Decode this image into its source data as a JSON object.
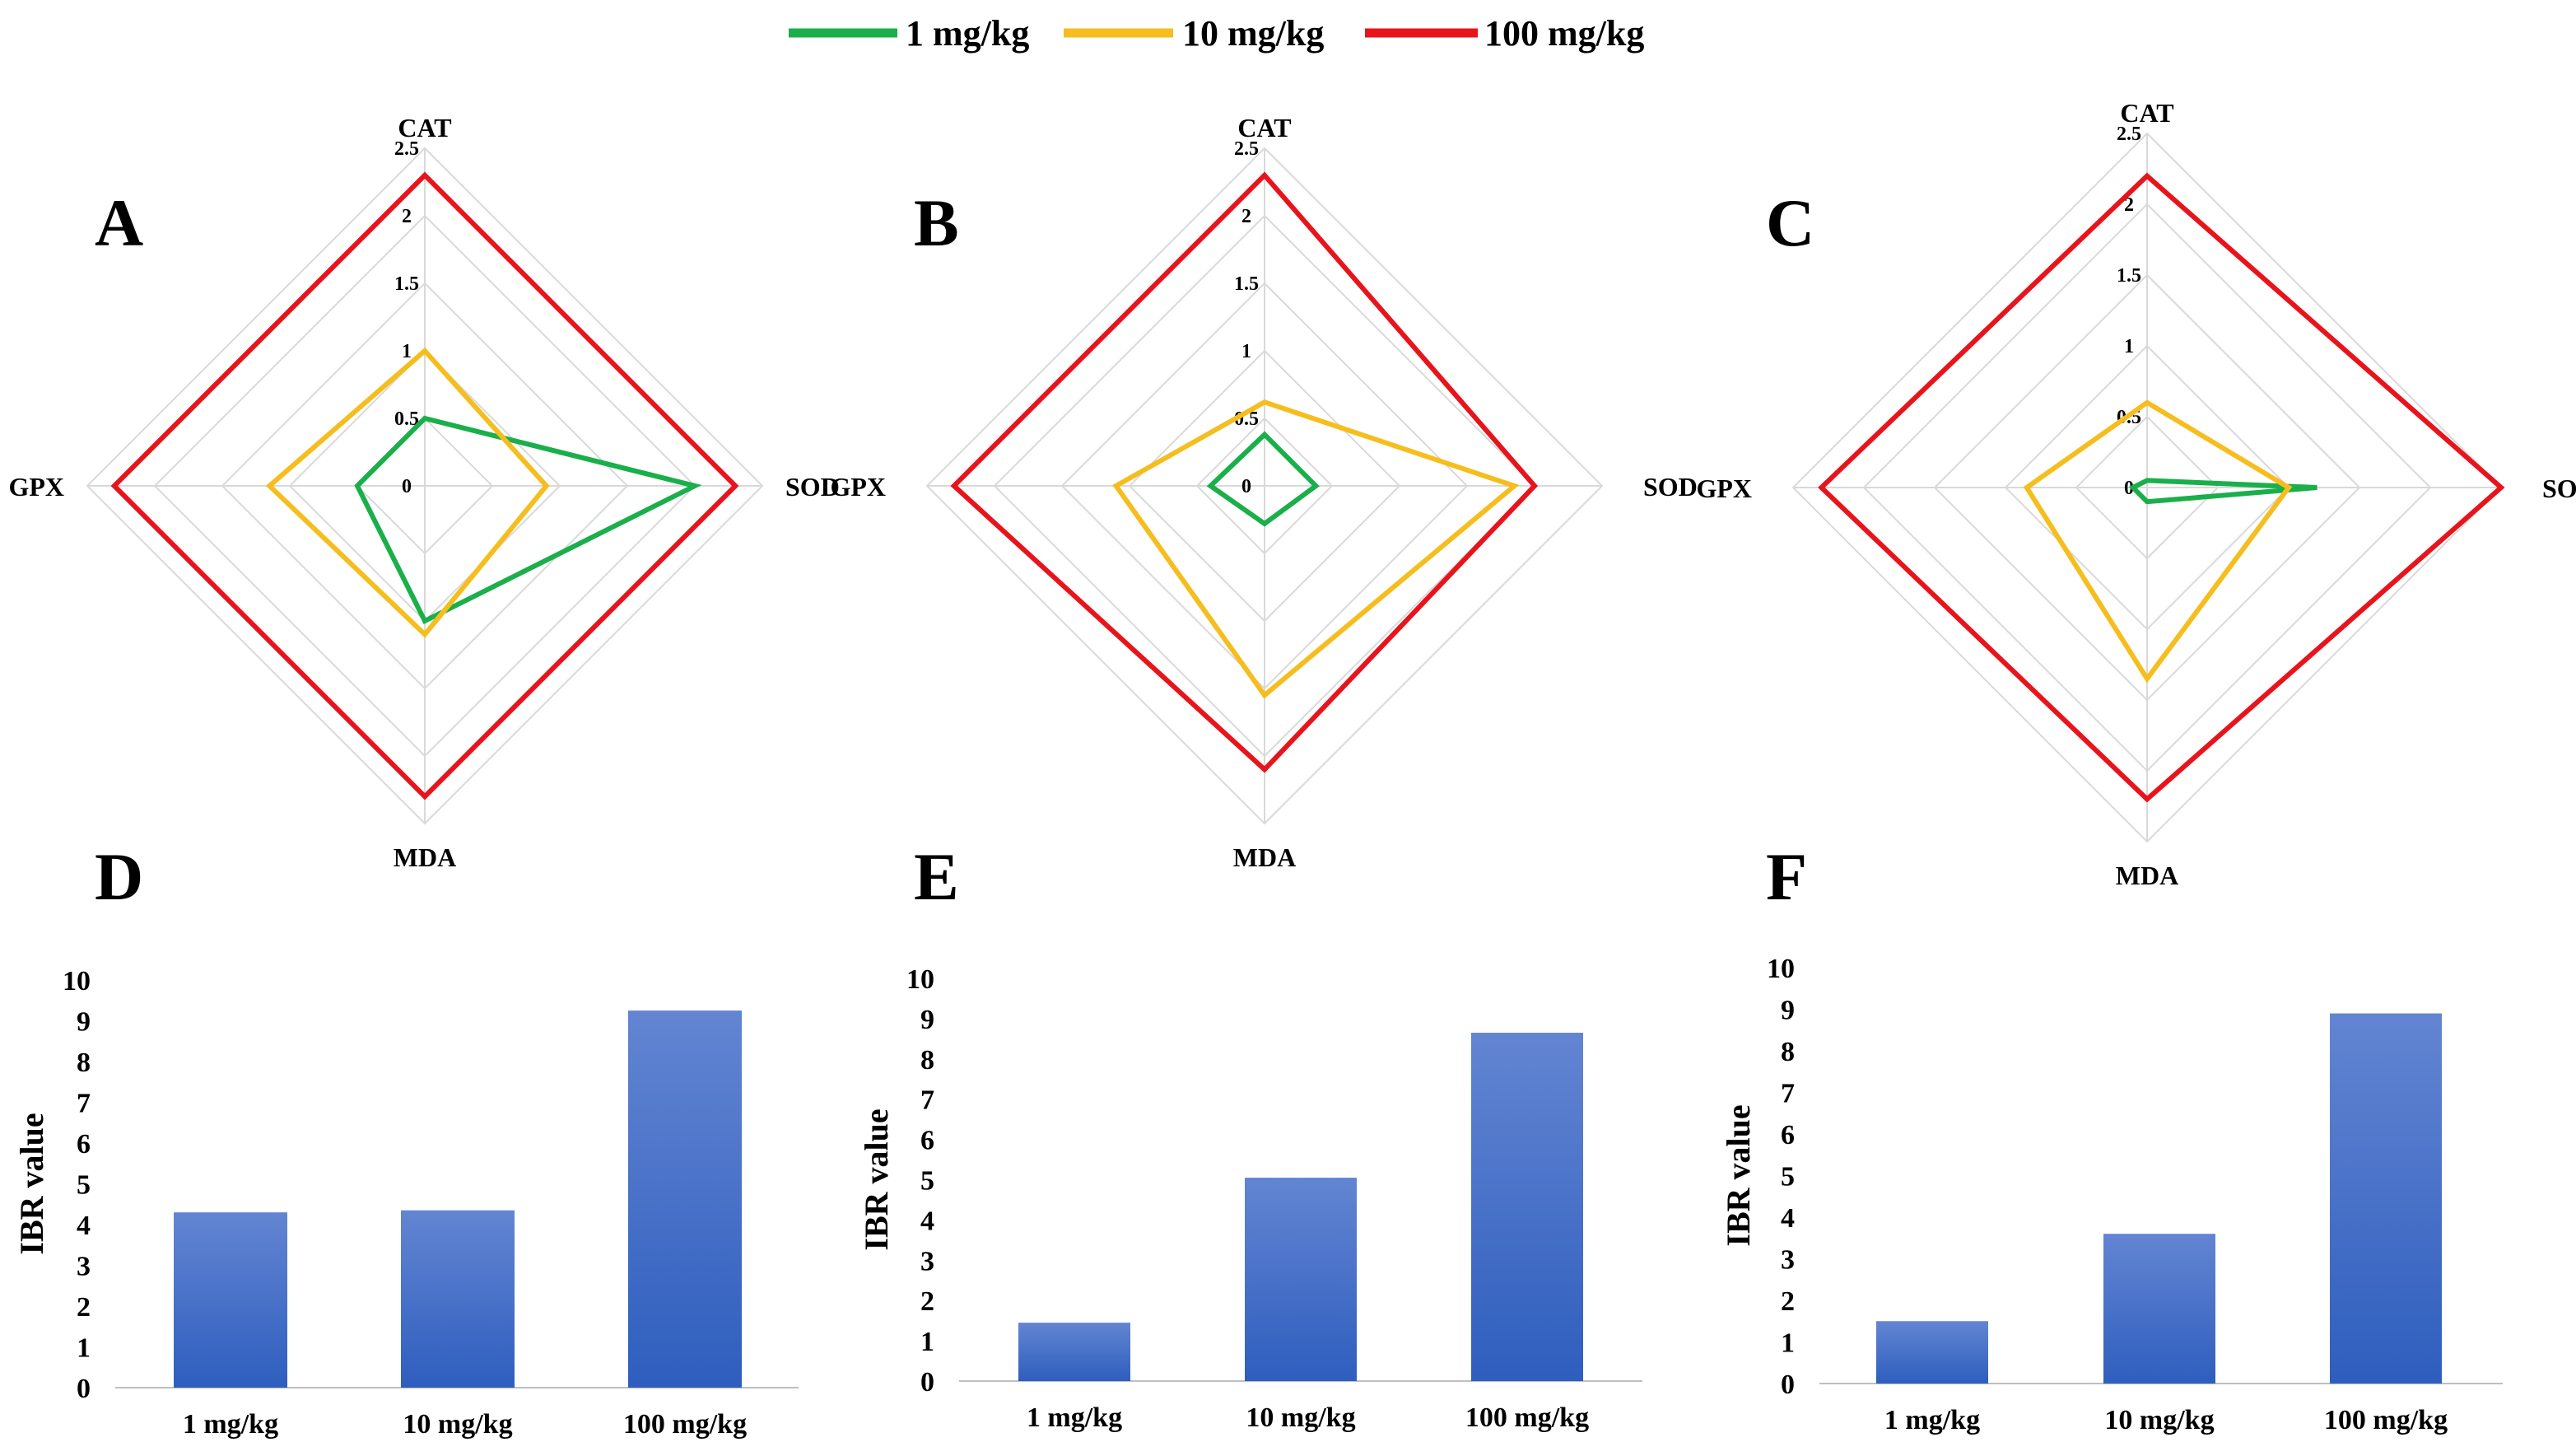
{
  "legend": [
    {
      "label": "1 mg/kg",
      "color": "#1AAF4B"
    },
    {
      "label": "10 mg/kg",
      "color": "#F5BE1E"
    },
    {
      "label": "100 mg/kg",
      "color": "#E8141C"
    }
  ],
  "chart_data": [
    {
      "panel": "A",
      "type": "radar",
      "axes": [
        "CAT",
        "SOD",
        "MDA",
        "GPX"
      ],
      "rmax": 2.5,
      "ticks": [
        0,
        0.5,
        1,
        1.5,
        2,
        2.5
      ],
      "series": [
        {
          "name": "1 mg/kg",
          "values": [
            0.5,
            2.0,
            1.0,
            0.5
          ]
        },
        {
          "name": "10 mg/kg",
          "values": [
            1.0,
            0.9,
            1.1,
            1.15
          ]
        },
        {
          "name": "100 mg/kg",
          "values": [
            2.3,
            2.3,
            2.3,
            2.3
          ]
        }
      ]
    },
    {
      "panel": "B",
      "type": "radar",
      "axes": [
        "CAT",
        "SOD",
        "MDA",
        "GPX"
      ],
      "rmax": 2.5,
      "ticks": [
        0,
        0.5,
        1,
        1.5,
        2,
        2.5
      ],
      "series": [
        {
          "name": "1 mg/kg",
          "values": [
            0.38,
            0.38,
            0.28,
            0.4
          ]
        },
        {
          "name": "10 mg/kg",
          "values": [
            0.62,
            1.85,
            1.55,
            1.1
          ]
        },
        {
          "name": "100 mg/kg",
          "values": [
            2.3,
            2.0,
            2.1,
            2.3
          ]
        }
      ]
    },
    {
      "panel": "C",
      "type": "radar",
      "axes": [
        "CAT",
        "SOD",
        "MDA",
        "GPX"
      ],
      "rmax": 2.5,
      "ticks": [
        0,
        0.5,
        1,
        1.5,
        2,
        2.5
      ],
      "series": [
        {
          "name": "1 mg/kg",
          "values": [
            0.05,
            1.2,
            0.1,
            0.1
          ]
        },
        {
          "name": "10 mg/kg",
          "values": [
            0.6,
            1.0,
            1.35,
            0.85
          ]
        },
        {
          "name": "100 mg/kg",
          "values": [
            2.2,
            2.5,
            2.2,
            2.3
          ]
        }
      ]
    },
    {
      "panel": "D",
      "type": "bar",
      "categories": [
        "1 mg/kg",
        "10 mg/kg",
        "100 mg/kg"
      ],
      "values": [
        4.3,
        4.35,
        9.25
      ],
      "ylabel": "IBR value",
      "ylim": [
        0,
        10
      ],
      "ticks": [
        "0",
        "1",
        "2",
        "3",
        "4",
        "5",
        "6",
        "7",
        "8",
        "9",
        "10"
      ],
      "color": "#3F6DC5"
    },
    {
      "panel": "E",
      "type": "bar",
      "categories": [
        "1 mg/kg",
        "10 mg/kg",
        "100 mg/kg"
      ],
      "values": [
        1.45,
        5.05,
        8.65
      ],
      "ylabel": "IBR value",
      "ylim": [
        0,
        10
      ],
      "ticks": [
        "0",
        "1",
        "2",
        "3",
        "4",
        "5",
        "6",
        "7",
        "8",
        "9",
        "10"
      ],
      "color": "#3F6DC5"
    },
    {
      "panel": "F",
      "type": "bar",
      "categories": [
        "1 mg/kg",
        "10 mg/kg",
        "100 mg/kg"
      ],
      "values": [
        1.5,
        3.6,
        8.9
      ],
      "ylabel": "IBR value",
      "ylim": [
        0,
        10
      ],
      "ticks": [
        "0",
        "1",
        "2",
        "3",
        "4",
        "5",
        "6",
        "7",
        "8",
        "9",
        "10"
      ],
      "color": "#3F6DC5"
    }
  ]
}
